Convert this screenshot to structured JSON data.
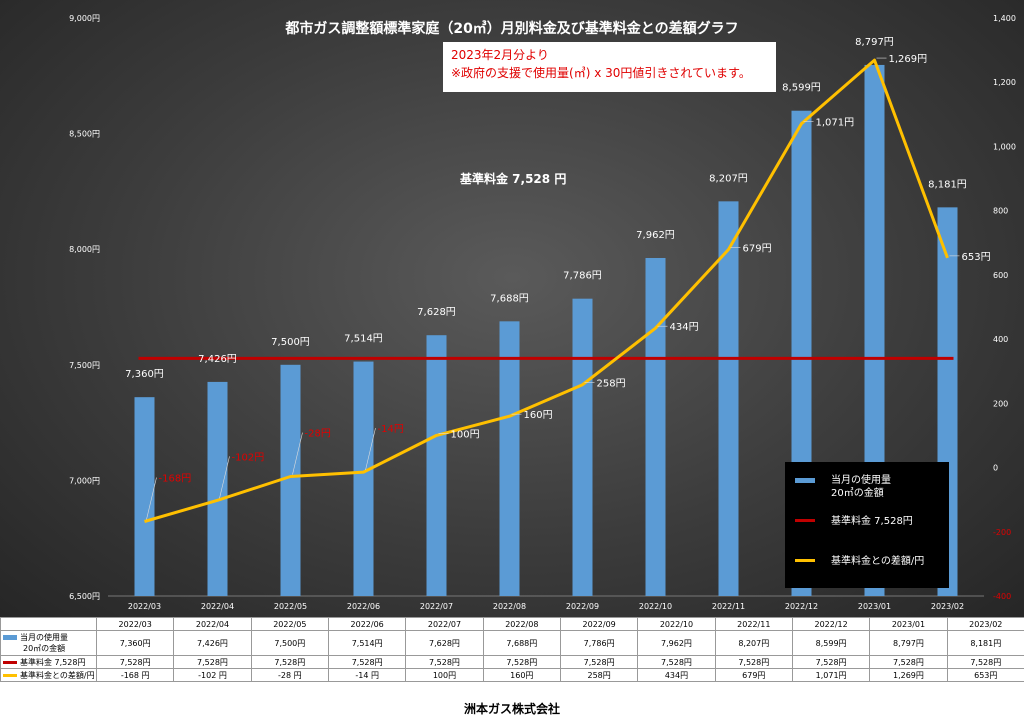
{
  "title": "都市ガス調整額標準家庭（20㎥）月別料金及び基準料金との差額グラフ",
  "notice": {
    "line1": "2023年2月分より",
    "line2": "※政府の支援で使用量(㎥) x 30円値引きされています。"
  },
  "base_label": "基準料金 7,528 円",
  "legend": {
    "usage_line1": "当月の使用量",
    "usage_line2": "20㎥の金額",
    "base": "基準料金 7,528円",
    "diff": "基準料金との差額/円"
  },
  "footer": "洲本ガス株式会社",
  "colors": {
    "bar": "#5b9bd5",
    "base_line": "#c00000",
    "diff_line": "#ffc000",
    "negative_label": "#e00000"
  },
  "table": {
    "usage_header_line1": "当月の使用量",
    "usage_header_line2": "20㎥の金額",
    "base_header": "基準料金 7,528円",
    "diff_header": "基準料金との差額/円",
    "usage_values": [
      "7,360円",
      "7,426円",
      "7,500円",
      "7,514円",
      "7,628円",
      "7,688円",
      "7,786円",
      "7,962円",
      "8,207円",
      "8,599円",
      "8,797円",
      "8,181円"
    ],
    "base_values": [
      "7,528円",
      "7,528円",
      "7,528円",
      "7,528円",
      "7,528円",
      "7,528円",
      "7,528円",
      "7,528円",
      "7,528円",
      "7,528円",
      "7,528円",
      "7,528円"
    ],
    "diff_values": [
      "-168 円",
      "-102 円",
      "-28 円",
      "-14 円",
      "100円",
      "160円",
      "258円",
      "434円",
      "679円",
      "1,071円",
      "1,269円",
      "653円"
    ]
  },
  "chart_data": {
    "type": "bar",
    "categories": [
      "2022/03",
      "2022/04",
      "2022/05",
      "2022/06",
      "2022/07",
      "2022/08",
      "2022/09",
      "2022/10",
      "2022/11",
      "2022/12",
      "2023/01",
      "2023/02"
    ],
    "series": [
      {
        "name": "当月の使用量 20㎥の金額",
        "type": "bar",
        "axis": "left",
        "values": [
          7360,
          7426,
          7500,
          7514,
          7628,
          7688,
          7786,
          7962,
          8207,
          8599,
          8797,
          8181
        ],
        "labels": [
          "7,360円",
          "7,426円",
          "7,500円",
          "7,514円",
          "7,628円",
          "7,688円",
          "7,786円",
          "7,962円",
          "8,207円",
          "8,599円",
          "8,797円",
          "8,181円"
        ]
      },
      {
        "name": "基準料金 7,528円",
        "type": "line",
        "axis": "left",
        "values": [
          7528,
          7528,
          7528,
          7528,
          7528,
          7528,
          7528,
          7528,
          7528,
          7528,
          7528,
          7528
        ]
      },
      {
        "name": "基準料金との差額/円",
        "type": "line",
        "axis": "right",
        "values": [
          -168,
          -102,
          -28,
          -14,
          100,
          160,
          258,
          434,
          679,
          1071,
          1269,
          653
        ],
        "labels": [
          "-168円",
          "-102円",
          "-28円",
          "-14円",
          "100円",
          "160円",
          "258円",
          "434円",
          "679円",
          "1,071円",
          "1,269円",
          "653円"
        ]
      }
    ],
    "ylim": [
      6500,
      9000
    ],
    "y_ticks": [
      "6,500円",
      "7,000円",
      "7,500円",
      "8,000円",
      "8,500円",
      "9,000円"
    ],
    "y2lim": [
      -400,
      1400
    ],
    "y2_ticks": [
      "-400",
      "-200",
      "0",
      "200",
      "400",
      "600",
      "800",
      "1,000",
      "1,200",
      "1,400"
    ],
    "legend": "bottom-right"
  }
}
